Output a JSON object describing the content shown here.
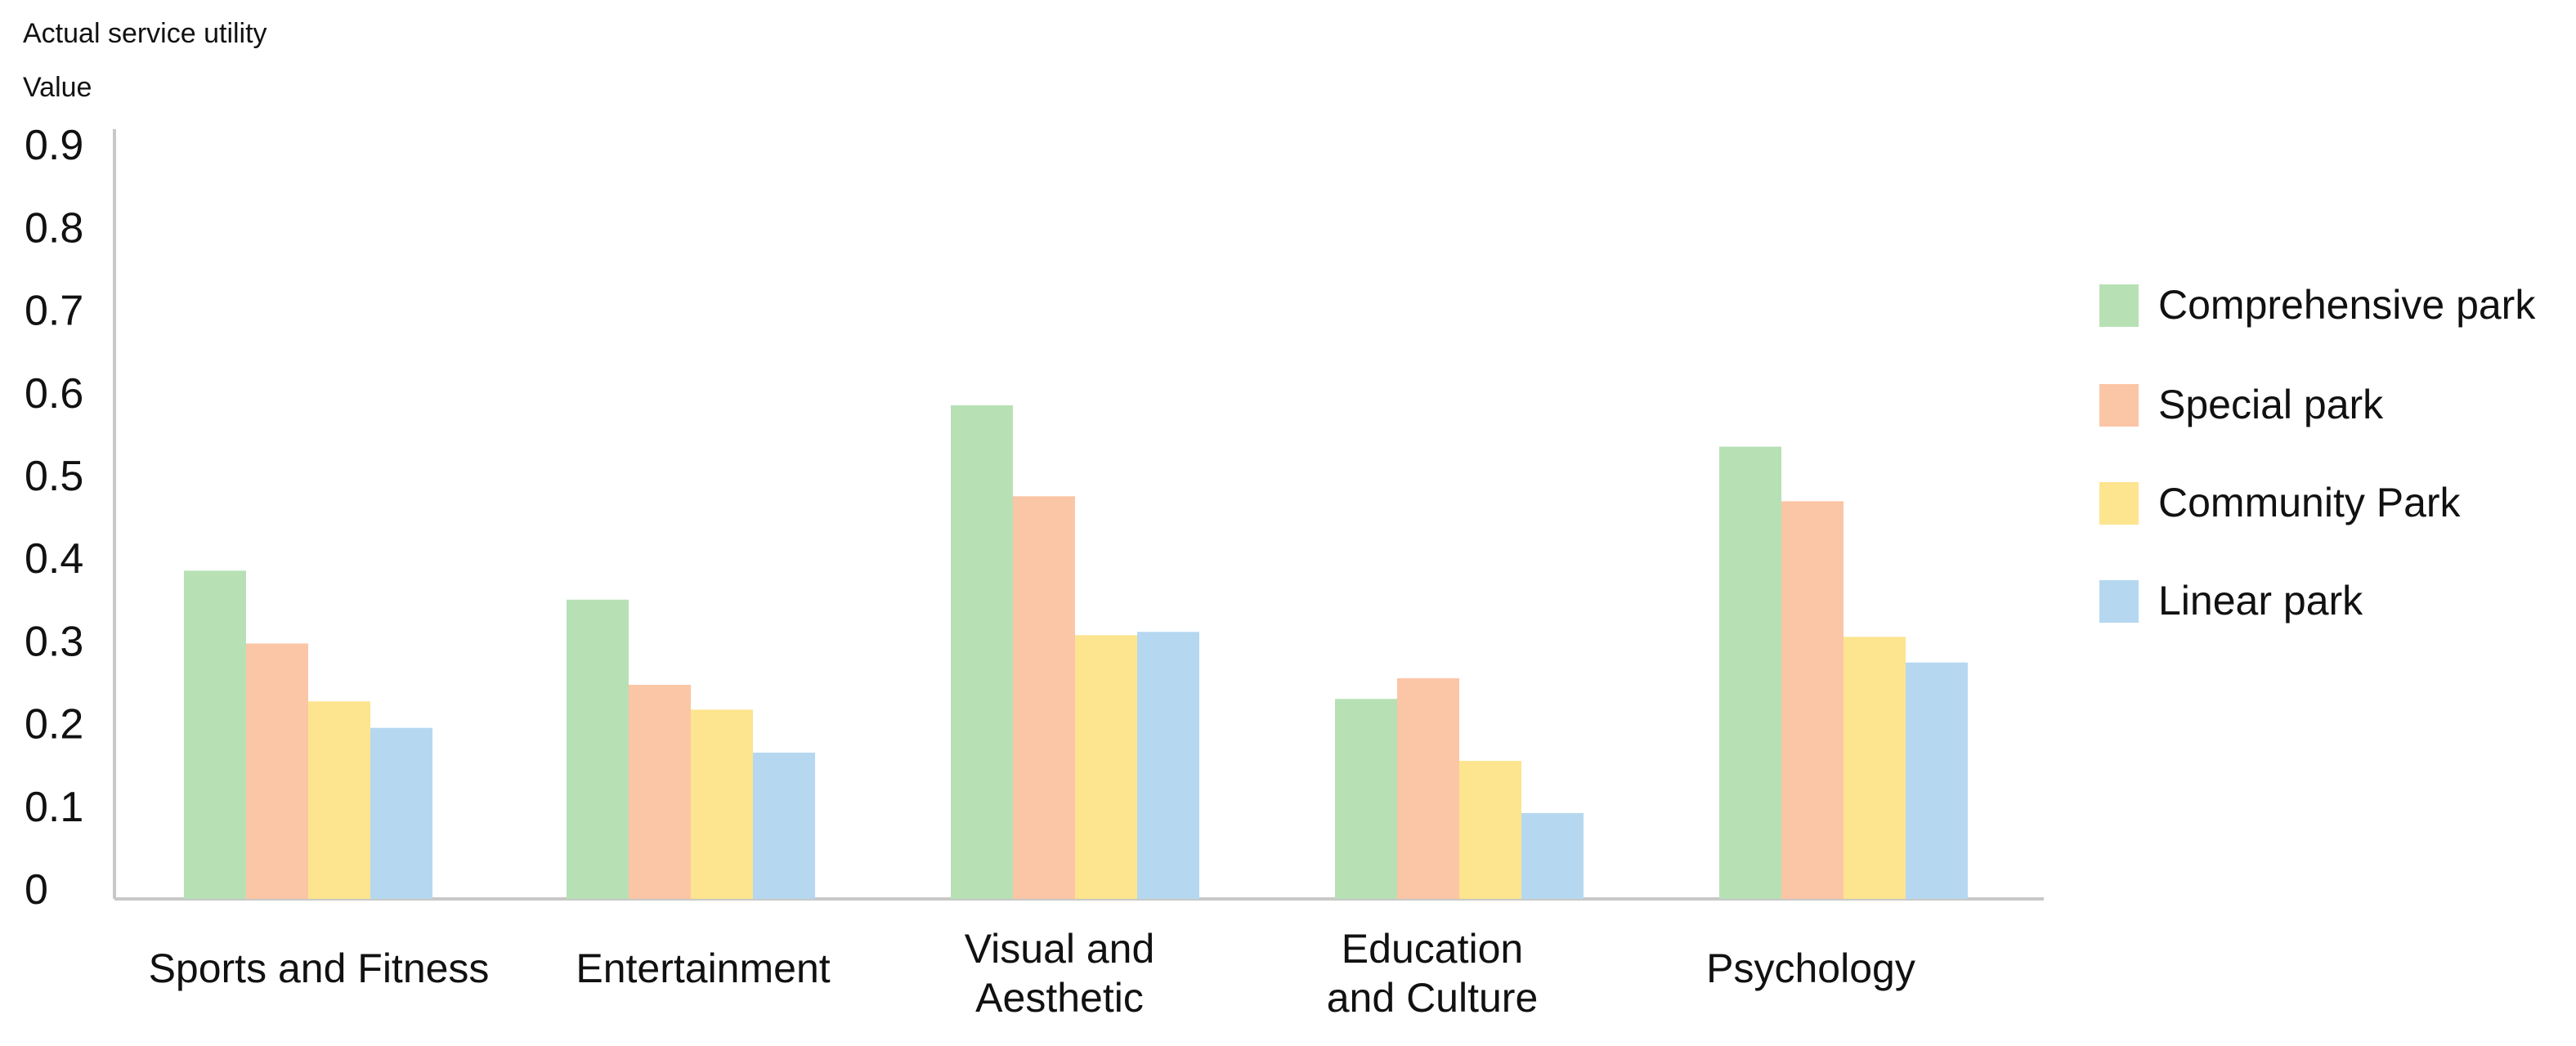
{
  "chart_data": {
    "type": "bar",
    "ylabel_line1": "Actual service utility",
    "ylabel_line2": "Value",
    "xlabel": "",
    "ylim": [
      0,
      0.9
    ],
    "yticks": [
      "0",
      "0.1",
      "0.2",
      "0.3",
      "0.4",
      "0.5",
      "0.6",
      "0.7",
      "0.8",
      "0.9"
    ],
    "grid": false,
    "legend_position": "right",
    "categories": [
      [
        "Sports and Fitness"
      ],
      [
        "Entertainment"
      ],
      [
        "Visual and",
        "Aesthetic"
      ],
      [
        "Education",
        "and Culture"
      ],
      [
        "Psychology"
      ]
    ],
    "series": [
      {
        "name": "Comprehensive park",
        "color": "#b7e1b4",
        "values": [
          0.385,
          0.35,
          0.585,
          0.23,
          0.535
        ]
      },
      {
        "name": "Special park",
        "color": "#fbc6a6",
        "values": [
          0.297,
          0.247,
          0.475,
          0.255,
          0.469
        ]
      },
      {
        "name": "Community Park",
        "color": "#fde48e",
        "values": [
          0.227,
          0.217,
          0.307,
          0.155,
          0.305
        ]
      },
      {
        "name": "Linear park",
        "color": "#b5d8f0",
        "values": [
          0.195,
          0.165,
          0.311,
          0.092,
          0.274
        ]
      }
    ]
  }
}
